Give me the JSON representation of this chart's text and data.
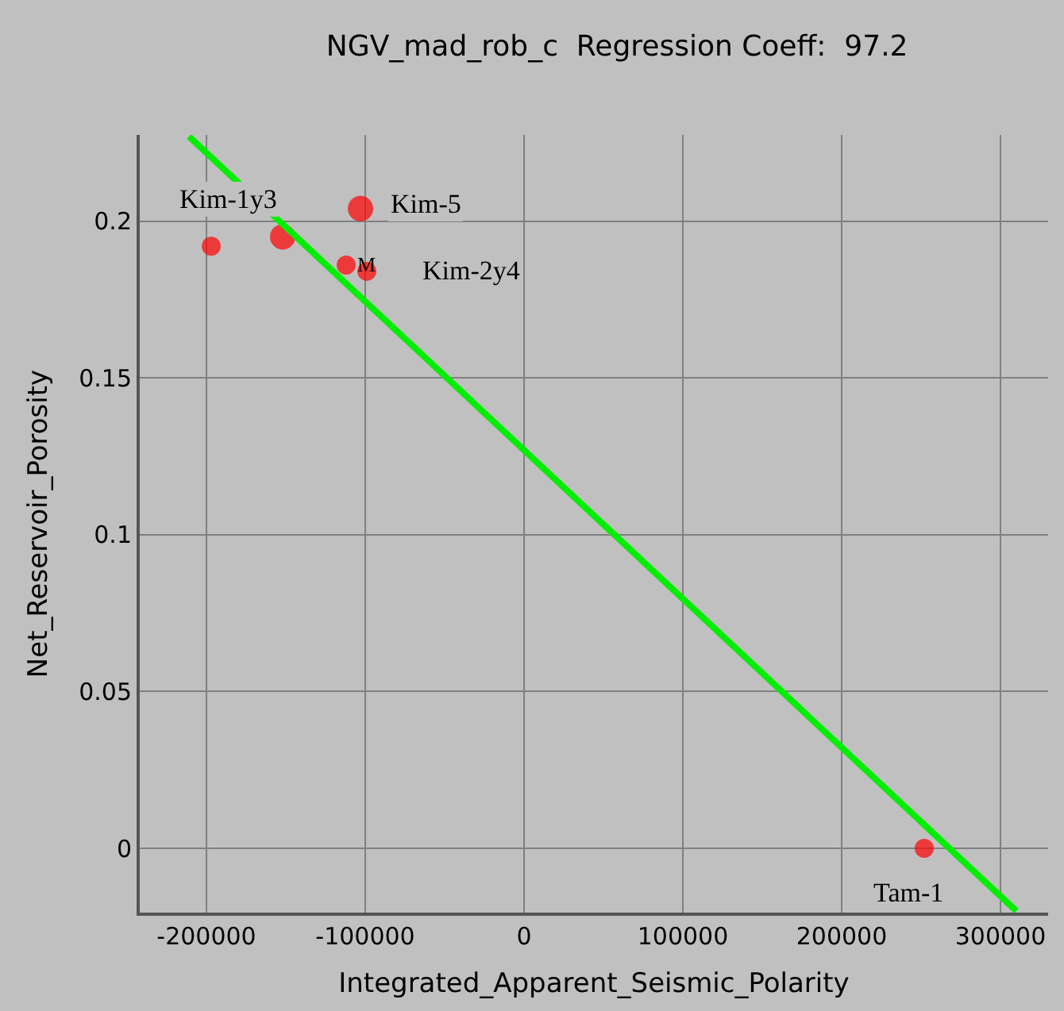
{
  "chart_data": {
    "type": "bubble",
    "title": "NGV_mad_rob_c  Regression Coeff:  97.2",
    "xlabel": "Integrated_Apparent_Seismic_Polarity",
    "ylabel": "Net_Reservoir_Porosity",
    "series": [
      {
        "color": "#ff0000",
        "x": [
          -197000,
          -152000,
          -103000,
          -112000,
          -99000,
          252000
        ],
        "values": [
          0.192,
          0.195,
          0.204,
          0.186,
          0.184,
          0
        ],
        "sizes": [
          0.56,
          1,
          1,
          0.56,
          0.56,
          0.56
        ]
      },
      {
        "type": "line",
        "color": "#00ee00",
        "x": [
          -211000,
          310000
        ],
        "values": [
          0.227,
          -0.02
        ]
      }
    ],
    "annotations": [
      {
        "text": "Kim-1y3",
        "x": -152000,
        "y": 0.195
      },
      {
        "text": "Kim-5",
        "x": -103000,
        "y": 0.204
      },
      {
        "text": "Kim-2y4",
        "x": -99000,
        "y": 0.184
      },
      {
        "text": "M",
        "x": -99000,
        "y": 0.184
      },
      {
        "text": "Tam-1",
        "x": 252000,
        "y": 0
      }
    ],
    "xlim": [
      -242000,
      330000
    ],
    "xticks": [
      -200000,
      -100000,
      0,
      100000,
      200000,
      300000
    ],
    "ylim": [
      -0.0205,
      0.2275
    ],
    "yticks": [
      0,
      0.05,
      0.1,
      0.15,
      0.2
    ],
    "grid": true,
    "legend": false
  }
}
